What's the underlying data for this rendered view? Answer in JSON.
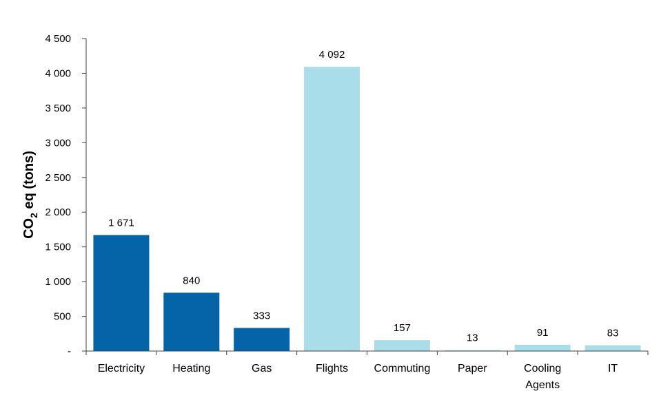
{
  "chart_data": {
    "type": "bar",
    "title": "",
    "xlabel": "",
    "ylabel": {
      "main": "CO",
      "subscript": "2",
      "rest": " eq (tons)"
    },
    "ylim": [
      0,
      4500
    ],
    "yticks": [
      0,
      500,
      1000,
      1500,
      2000,
      2500,
      3000,
      3500,
      4000,
      4500
    ],
    "ytick_labels": [
      "-",
      "500",
      "1 000",
      "1 500",
      "2 000",
      "2 500",
      "3 000",
      "3 500",
      "4 000",
      "4 500"
    ],
    "grid": false,
    "legend": "none",
    "categories": [
      [
        "Electricity"
      ],
      [
        "Heating"
      ],
      [
        "Gas"
      ],
      [
        "Flights"
      ],
      [
        "Commuting"
      ],
      [
        "Paper"
      ],
      [
        "Cooling",
        "Agents"
      ],
      [
        "IT"
      ]
    ],
    "values": [
      1671,
      840,
      333,
      4092,
      157,
      13,
      91,
      83
    ],
    "value_labels": [
      "1 671",
      "840",
      "333",
      "4 092",
      "157",
      "13",
      "91",
      "83"
    ],
    "bar_colors": [
      "#0563a8",
      "#0563a8",
      "#0563a8",
      "#a8dde9",
      "#a8dde9",
      "#a8dde9",
      "#a8dde9",
      "#a8dde9"
    ],
    "axis_color": "#404040"
  }
}
